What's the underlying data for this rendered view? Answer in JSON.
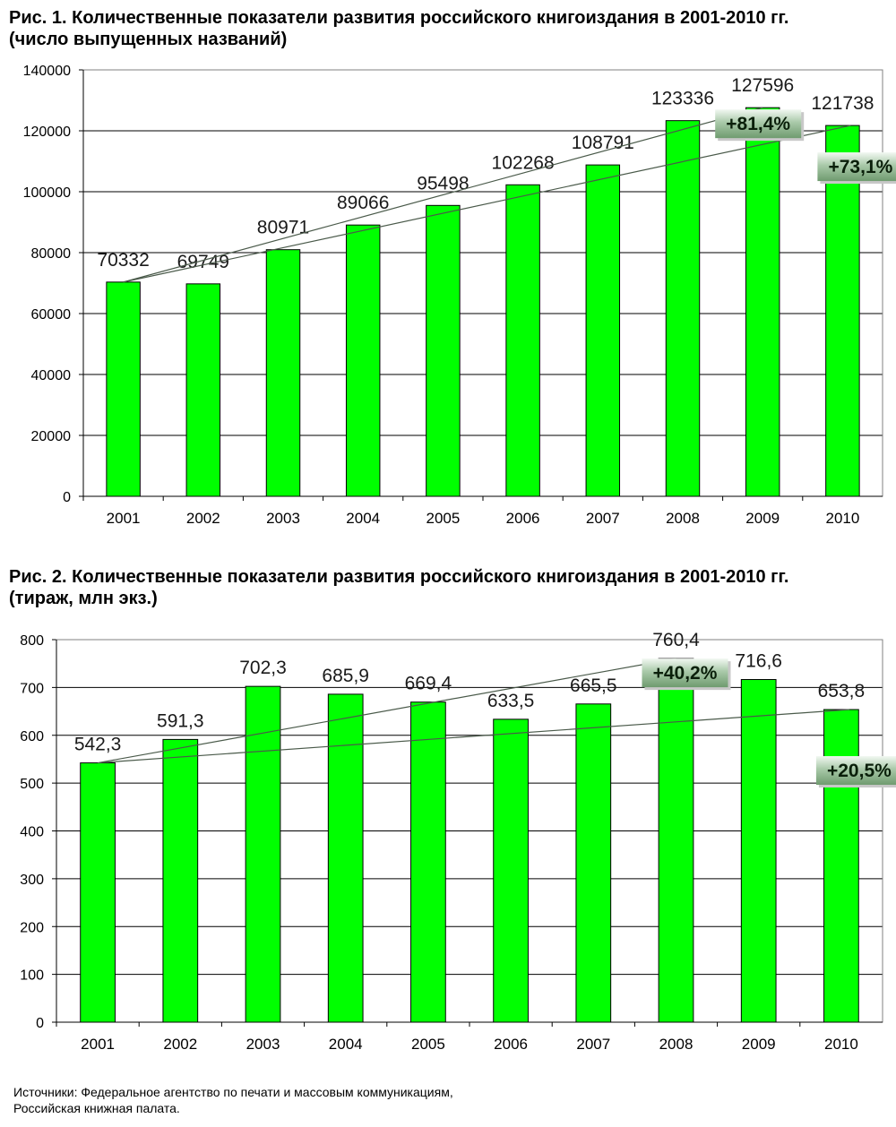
{
  "chart_data": [
    {
      "type": "bar",
      "title": "Рис. 1. Количественные показатели развития российского книгоиздания в 2001-2010 гг.",
      "subtitle": "(число выпущенных названий)",
      "categories": [
        "2001",
        "2002",
        "2003",
        "2004",
        "2005",
        "2006",
        "2007",
        "2008",
        "2009",
        "2010"
      ],
      "values": [
        70332,
        69749,
        80971,
        89066,
        95498,
        102268,
        108791,
        123336,
        127596,
        121738
      ],
      "data_labels": [
        "70332",
        "69749",
        "80971",
        "89066",
        "95498",
        "102268",
        "108791",
        "123336",
        "127596",
        "121738"
      ],
      "ylim": [
        0,
        140000
      ],
      "yticks": [
        0,
        20000,
        40000,
        60000,
        80000,
        100000,
        120000,
        140000
      ],
      "ytick_labels": [
        "0",
        "20000",
        "40000",
        "60000",
        "80000",
        "100000",
        "120000",
        "140000"
      ],
      "grid": true,
      "bar_color": "#00ff00",
      "trend_lines": [
        {
          "from_index": 0,
          "to_index": 8,
          "from_value": 70332,
          "to_value": 127596,
          "label": "+81,4%"
        },
        {
          "from_index": 0,
          "to_index": 9,
          "from_value": 70332,
          "to_value": 121738,
          "label": "+73,1%"
        }
      ]
    },
    {
      "type": "bar",
      "title": "Рис. 2. Количественные показатели развития российского книгоиздания в 2001-2010 гг.",
      "subtitle": "(тираж, млн экз.)",
      "categories": [
        "2001",
        "2002",
        "2003",
        "2004",
        "2005",
        "2006",
        "2007",
        "2008",
        "2009",
        "2010"
      ],
      "values": [
        542.3,
        591.3,
        702.3,
        685.9,
        669.4,
        633.5,
        665.5,
        760.4,
        716.6,
        653.8
      ],
      "data_labels": [
        "542,3",
        "591,3",
        "702,3",
        "685,9",
        "669,4",
        "633,5",
        "665,5",
        "760,4",
        "716,6",
        "653,8"
      ],
      "ylim": [
        0,
        800
      ],
      "yticks": [
        0,
        100,
        200,
        300,
        400,
        500,
        600,
        700,
        800
      ],
      "ytick_labels": [
        "0",
        "100",
        "200",
        "300",
        "400",
        "500",
        "600",
        "700",
        "800"
      ],
      "grid": true,
      "bar_color": "#00ff00",
      "trend_lines": [
        {
          "from_index": 0,
          "to_index": 7,
          "from_value": 542.3,
          "to_value": 760.4,
          "label": "+40,2%"
        },
        {
          "from_index": 0,
          "to_index": 9,
          "from_value": 542.3,
          "to_value": 653.8,
          "label": "+20,5%"
        }
      ]
    }
  ],
  "sources": {
    "line1": "Источники: Федеральное агентство по печати и массовым коммуникациям,",
    "line2": "Российская книжная палата."
  }
}
